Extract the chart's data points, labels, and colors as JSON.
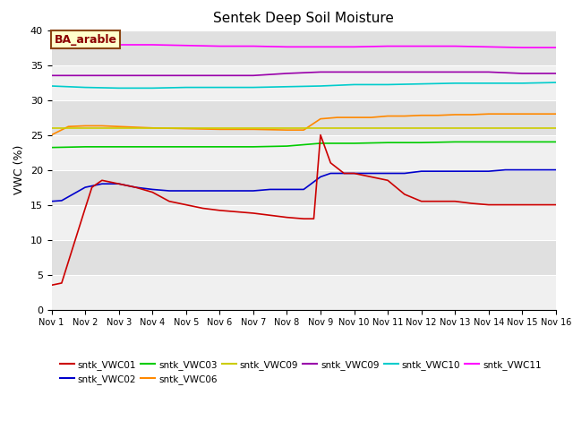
{
  "title": "Sentek Deep Soil Moisture",
  "ylabel": "VWC (%)",
  "annotation": "BA_arable",
  "xlim": [
    0,
    15
  ],
  "ylim": [
    0,
    40
  ],
  "yticks": [
    0,
    5,
    10,
    15,
    20,
    25,
    30,
    35,
    40
  ],
  "xtick_labels": [
    "Nov 1",
    "Nov 2",
    "Nov 3",
    "Nov 4",
    "Nov 5",
    "Nov 6",
    "Nov 7",
    "Nov 8",
    "Nov 9",
    "Nov 10",
    "Nov 11",
    "Nov 12",
    "Nov 13",
    "Nov 14",
    "Nov 15",
    "Nov 16"
  ],
  "series": {
    "sntk_VWC01": {
      "color": "#cc0000",
      "label": "sntk_VWC01",
      "x": [
        0,
        0.3,
        1.0,
        1.2,
        1.5,
        2.0,
        2.5,
        3.0,
        3.5,
        4.0,
        4.5,
        5.0,
        5.5,
        6.0,
        6.5,
        7.0,
        7.5,
        7.8,
        8.0,
        8.3,
        8.7,
        9.0,
        9.5,
        10.0,
        10.5,
        11.0,
        11.5,
        12.0,
        12.5,
        13.0,
        13.5,
        14.0,
        14.5,
        15.0
      ],
      "y": [
        3.5,
        3.8,
        14.5,
        17.5,
        18.5,
        18.0,
        17.5,
        16.8,
        15.5,
        15.0,
        14.5,
        14.2,
        14.0,
        13.8,
        13.5,
        13.2,
        13.0,
        13.0,
        25.0,
        21.0,
        19.5,
        19.5,
        19.0,
        18.5,
        16.5,
        15.5,
        15.5,
        15.5,
        15.2,
        15.0,
        15.0,
        15.0,
        15.0,
        15.0
      ]
    },
    "sntk_VWC02": {
      "color": "#0000cc",
      "label": "sntk_VWC02",
      "x": [
        0,
        0.3,
        1.0,
        1.5,
        2.0,
        2.5,
        3.0,
        3.5,
        4.0,
        4.5,
        5.0,
        5.5,
        6.0,
        6.5,
        7.0,
        7.5,
        8.0,
        8.3,
        8.7,
        9.0,
        9.5,
        10.0,
        10.5,
        11.0,
        11.5,
        12.0,
        12.5,
        13.0,
        13.5,
        14.0,
        14.5,
        15.0
      ],
      "y": [
        15.5,
        15.6,
        17.5,
        18.0,
        18.0,
        17.5,
        17.2,
        17.0,
        17.0,
        17.0,
        17.0,
        17.0,
        17.0,
        17.2,
        17.2,
        17.2,
        19.0,
        19.5,
        19.5,
        19.5,
        19.5,
        19.5,
        19.5,
        19.8,
        19.8,
        19.8,
        19.8,
        19.8,
        20.0,
        20.0,
        20.0,
        20.0
      ]
    },
    "sntk_VWC03": {
      "color": "#00cc00",
      "label": "sntk_VWC03",
      "x": [
        0,
        1.0,
        2.0,
        3.0,
        4.0,
        5.0,
        6.0,
        7.0,
        8.0,
        9.0,
        10.0,
        11.0,
        12.0,
        13.0,
        14.0,
        15.0
      ],
      "y": [
        23.2,
        23.3,
        23.3,
        23.3,
        23.3,
        23.3,
        23.3,
        23.4,
        23.8,
        23.8,
        23.9,
        23.9,
        24.0,
        24.0,
        24.0,
        24.0
      ]
    },
    "sntk_VWC06": {
      "color": "#ff8800",
      "label": "sntk_VWC06",
      "x": [
        0,
        0.5,
        1.0,
        1.5,
        2.0,
        3.0,
        4.0,
        5.0,
        6.0,
        7.0,
        7.5,
        8.0,
        8.5,
        9.0,
        9.5,
        10.0,
        10.5,
        11.0,
        11.5,
        12.0,
        12.5,
        13.0,
        13.5,
        14.0,
        14.5,
        15.0
      ],
      "y": [
        25.0,
        26.2,
        26.3,
        26.3,
        26.2,
        26.0,
        25.9,
        25.8,
        25.8,
        25.7,
        25.7,
        27.3,
        27.5,
        27.5,
        27.5,
        27.7,
        27.7,
        27.8,
        27.8,
        27.9,
        27.9,
        28.0,
        28.0,
        28.0,
        28.0,
        28.0
      ]
    },
    "sntk_VWC09_yellow": {
      "color": "#cccc00",
      "label": "sntk_VWC09",
      "x": [
        0,
        15.0
      ],
      "y": [
        26.0,
        26.0
      ]
    },
    "sntk_VWC09_purple": {
      "color": "#9900aa",
      "label": "sntk_VWC09",
      "x": [
        0,
        1.0,
        2.0,
        3.0,
        4.0,
        5.0,
        6.0,
        7.0,
        8.0,
        9.0,
        10.0,
        11.0,
        12.0,
        13.0,
        14.0,
        15.0
      ],
      "y": [
        33.5,
        33.5,
        33.5,
        33.5,
        33.5,
        33.5,
        33.5,
        33.8,
        34.0,
        34.0,
        34.0,
        34.0,
        34.0,
        34.0,
        33.8,
        33.8
      ]
    },
    "sntk_VWC10": {
      "color": "#00cccc",
      "label": "sntk_VWC10",
      "x": [
        0,
        1.0,
        2.0,
        3.0,
        4.0,
        5.0,
        6.0,
        7.0,
        8.0,
        9.0,
        10.0,
        11.0,
        12.0,
        13.0,
        14.0,
        15.0
      ],
      "y": [
        32.0,
        31.8,
        31.7,
        31.7,
        31.8,
        31.8,
        31.8,
        31.9,
        32.0,
        32.2,
        32.2,
        32.3,
        32.4,
        32.4,
        32.4,
        32.5
      ]
    },
    "sntk_VWC11": {
      "color": "#ff00ff",
      "label": "sntk_VWC11",
      "x": [
        0,
        1.0,
        2.0,
        3.0,
        4.0,
        5.0,
        6.0,
        7.0,
        8.0,
        9.0,
        10.0,
        11.0,
        12.0,
        13.0,
        14.0,
        15.0
      ],
      "y": [
        38.0,
        38.0,
        37.9,
        37.9,
        37.8,
        37.7,
        37.7,
        37.6,
        37.6,
        37.6,
        37.7,
        37.7,
        37.7,
        37.6,
        37.5,
        37.5
      ]
    }
  },
  "legend_entries": [
    {
      "label": "sntk_VWC01",
      "color": "#cc0000"
    },
    {
      "label": "sntk_VWC02",
      "color": "#0000cc"
    },
    {
      "label": "sntk_VWC03",
      "color": "#00cc00"
    },
    {
      "label": "sntk_VWC06",
      "color": "#ff8800"
    },
    {
      "label": "sntk_VWC09",
      "color": "#cccc00"
    },
    {
      "label": "sntk_VWC09",
      "color": "#9900aa"
    },
    {
      "label": "sntk_VWC10",
      "color": "#00cccc"
    },
    {
      "label": "sntk_VWC11",
      "color": "#ff00ff"
    }
  ],
  "band_colors": [
    "#f0f0f0",
    "#e0e0e0"
  ]
}
